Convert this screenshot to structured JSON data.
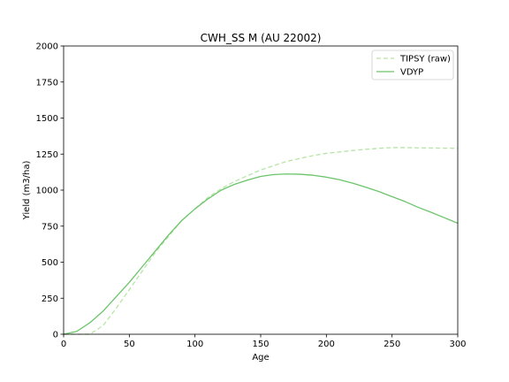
{
  "chart_data": {
    "type": "line",
    "title": "CWH_SS M (AU 22002)",
    "xlabel": "Age",
    "ylabel": "Yield (m3/ha)",
    "xlim": [
      0,
      300
    ],
    "ylim": [
      0,
      2000
    ],
    "xticks": [
      "0",
      "50",
      "100",
      "150",
      "200",
      "250",
      "300"
    ],
    "yticks": [
      "0",
      "250",
      "500",
      "750",
      "1000",
      "1250",
      "1500",
      "1750",
      "2000"
    ],
    "grid": false,
    "legend_position": "top-right",
    "series": [
      {
        "name": "TIPSY (raw)",
        "color": "#b7e4a7",
        "style": "dashed",
        "x": [
          0,
          10,
          20,
          30,
          40,
          50,
          60,
          70,
          80,
          90,
          100,
          110,
          120,
          130,
          140,
          150,
          160,
          170,
          180,
          190,
          200,
          210,
          220,
          230,
          240,
          250,
          260,
          270,
          280,
          290,
          300
        ],
        "y": [
          0,
          0,
          0,
          60,
          180,
          310,
          440,
          570,
          680,
          790,
          870,
          950,
          1010,
          1060,
          1100,
          1140,
          1170,
          1200,
          1220,
          1240,
          1255,
          1265,
          1275,
          1283,
          1290,
          1295,
          1295,
          1293,
          1292,
          1291,
          1290
        ]
      },
      {
        "name": "VDYP",
        "color": "#6cc46a",
        "style": "solid",
        "x": [
          0,
          10,
          20,
          30,
          40,
          50,
          60,
          70,
          80,
          90,
          100,
          110,
          120,
          130,
          140,
          150,
          160,
          170,
          180,
          190,
          200,
          210,
          220,
          230,
          240,
          250,
          260,
          270,
          280,
          290,
          300
        ],
        "y": [
          0,
          20,
          80,
          160,
          260,
          360,
          470,
          580,
          690,
          790,
          870,
          940,
          1000,
          1040,
          1070,
          1095,
          1108,
          1112,
          1110,
          1103,
          1090,
          1072,
          1048,
          1020,
          990,
          955,
          920,
          880,
          845,
          808,
          770
        ]
      }
    ]
  }
}
